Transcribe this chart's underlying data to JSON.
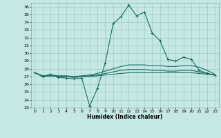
{
  "xlabel": "Humidex (Indice chaleur)",
  "background_color": "#c5e8e5",
  "grid_color": "#9eccc8",
  "line_color": "#1a6b60",
  "xlim": [
    -0.5,
    23.5
  ],
  "ylim": [
    23,
    36.5
  ],
  "yticks": [
    23,
    24,
    25,
    26,
    27,
    28,
    29,
    30,
    31,
    32,
    33,
    34,
    35,
    36
  ],
  "xticks": [
    0,
    1,
    2,
    3,
    4,
    5,
    6,
    7,
    8,
    9,
    10,
    11,
    12,
    13,
    14,
    15,
    16,
    17,
    18,
    19,
    20,
    21,
    22,
    23
  ],
  "series": {
    "main": [
      27.5,
      27.0,
      27.3,
      26.9,
      26.8,
      26.7,
      26.8,
      23.2,
      25.5,
      28.8,
      33.8,
      34.7,
      36.2,
      34.8,
      35.3,
      32.6,
      31.6,
      29.2,
      29.0,
      29.5,
      29.2,
      27.8,
      27.4,
      27.2
    ],
    "line2": [
      27.5,
      27.0,
      27.1,
      27.0,
      27.0,
      26.9,
      27.0,
      27.0,
      27.1,
      27.2,
      27.3,
      27.4,
      27.5,
      27.5,
      27.5,
      27.5,
      27.5,
      27.5,
      27.5,
      27.5,
      27.5,
      27.4,
      27.3,
      27.2
    ],
    "line3": [
      27.5,
      27.1,
      27.2,
      27.1,
      27.1,
      27.0,
      27.1,
      27.2,
      27.4,
      27.7,
      28.0,
      28.3,
      28.5,
      28.5,
      28.5,
      28.4,
      28.4,
      28.3,
      28.3,
      28.4,
      28.4,
      28.2,
      27.8,
      27.3
    ],
    "line4": [
      27.5,
      27.0,
      27.1,
      27.0,
      27.0,
      26.9,
      27.0,
      27.1,
      27.2,
      27.4,
      27.6,
      27.8,
      27.9,
      27.9,
      27.9,
      27.8,
      27.8,
      27.7,
      27.7,
      27.8,
      27.8,
      27.6,
      27.4,
      27.2
    ]
  },
  "marker": "+",
  "markersize": 3,
  "linewidth": 0.8
}
